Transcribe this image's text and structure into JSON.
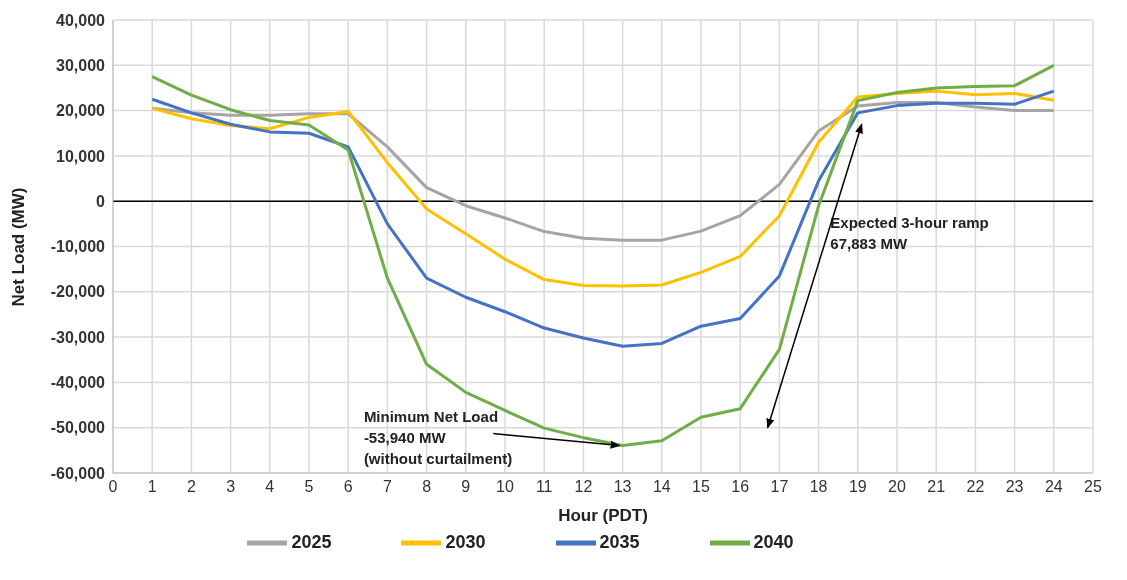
{
  "chart_data": {
    "type": "line",
    "xlabel": "Hour (PDT)",
    "ylabel": "Net Load (MW)",
    "x": [
      1,
      2,
      3,
      4,
      5,
      6,
      7,
      8,
      9,
      10,
      11,
      12,
      13,
      14,
      15,
      16,
      17,
      18,
      19,
      20,
      21,
      22,
      23,
      24
    ],
    "series": [
      {
        "name": "2025",
        "color": "#a5a5a5",
        "values": [
          20500,
          19500,
          19000,
          19000,
          19300,
          19300,
          12000,
          3000,
          -1000,
          -3700,
          -6700,
          -8200,
          -8600,
          -8600,
          -6600,
          -3200,
          3700,
          15500,
          21000,
          21800,
          21800,
          20800,
          20000,
          20000
        ]
      },
      {
        "name": "2030",
        "color": "#ffc000",
        "values": [
          20500,
          18200,
          16700,
          16000,
          18500,
          19800,
          8500,
          -1700,
          -7200,
          -12800,
          -17300,
          -18600,
          -18700,
          -18500,
          -15700,
          -12200,
          -3200,
          13000,
          23000,
          23800,
          24300,
          23500,
          23800,
          22300
        ]
      },
      {
        "name": "2035",
        "color": "#4472c4",
        "values": [
          22500,
          19500,
          17000,
          15300,
          15000,
          12000,
          -5000,
          -17000,
          -21200,
          -24400,
          -28000,
          -30200,
          -32000,
          -31400,
          -27600,
          -25900,
          -16500,
          4500,
          19500,
          21100,
          21600,
          21600,
          21400,
          24300
        ]
      },
      {
        "name": "2040",
        "color": "#70ad47",
        "values": [
          27500,
          23400,
          20200,
          17800,
          16800,
          11300,
          -17000,
          -36000,
          -42200,
          -46200,
          -50100,
          -52200,
          -53940,
          -52900,
          -47700,
          -45800,
          -32700,
          -1000,
          22200,
          24000,
          25000,
          25300,
          25500,
          30000
        ]
      }
    ],
    "xlim": [
      0,
      25
    ],
    "xticks": [
      0,
      1,
      2,
      3,
      4,
      5,
      6,
      7,
      8,
      9,
      10,
      11,
      12,
      13,
      14,
      15,
      16,
      17,
      18,
      19,
      20,
      21,
      22,
      23,
      24,
      25
    ],
    "ylim": [
      -60000,
      40000
    ],
    "yticks": [
      {
        "value": -60000,
        "label": "-60,000"
      },
      {
        "value": -50000,
        "label": "-50,000"
      },
      {
        "value": -40000,
        "label": "-40,000"
      },
      {
        "value": -30000,
        "label": "-30,000"
      },
      {
        "value": -20000,
        "label": "-20,000"
      },
      {
        "value": -10000,
        "label": "-10,000"
      },
      0,
      {
        "value": 10000,
        "label": "10,000"
      },
      {
        "value": 20000,
        "label": "20,000"
      },
      {
        "value": 30000,
        "label": "30,000"
      },
      {
        "value": 40000,
        "label": "40,000"
      }
    ],
    "ref_lines": [
      {
        "axis": "y",
        "value": 0,
        "color": "#000000"
      }
    ],
    "annotations": [
      {
        "text": "Minimum Net Load\n-53,940 MW\n(without curtailment)",
        "x": 13,
        "y": -53940
      },
      "Expected 3-hour ramp\n67,883 MW"
    ],
    "grid": true,
    "legend": "bottom",
    "marker": "none",
    "line_style": "solid"
  }
}
